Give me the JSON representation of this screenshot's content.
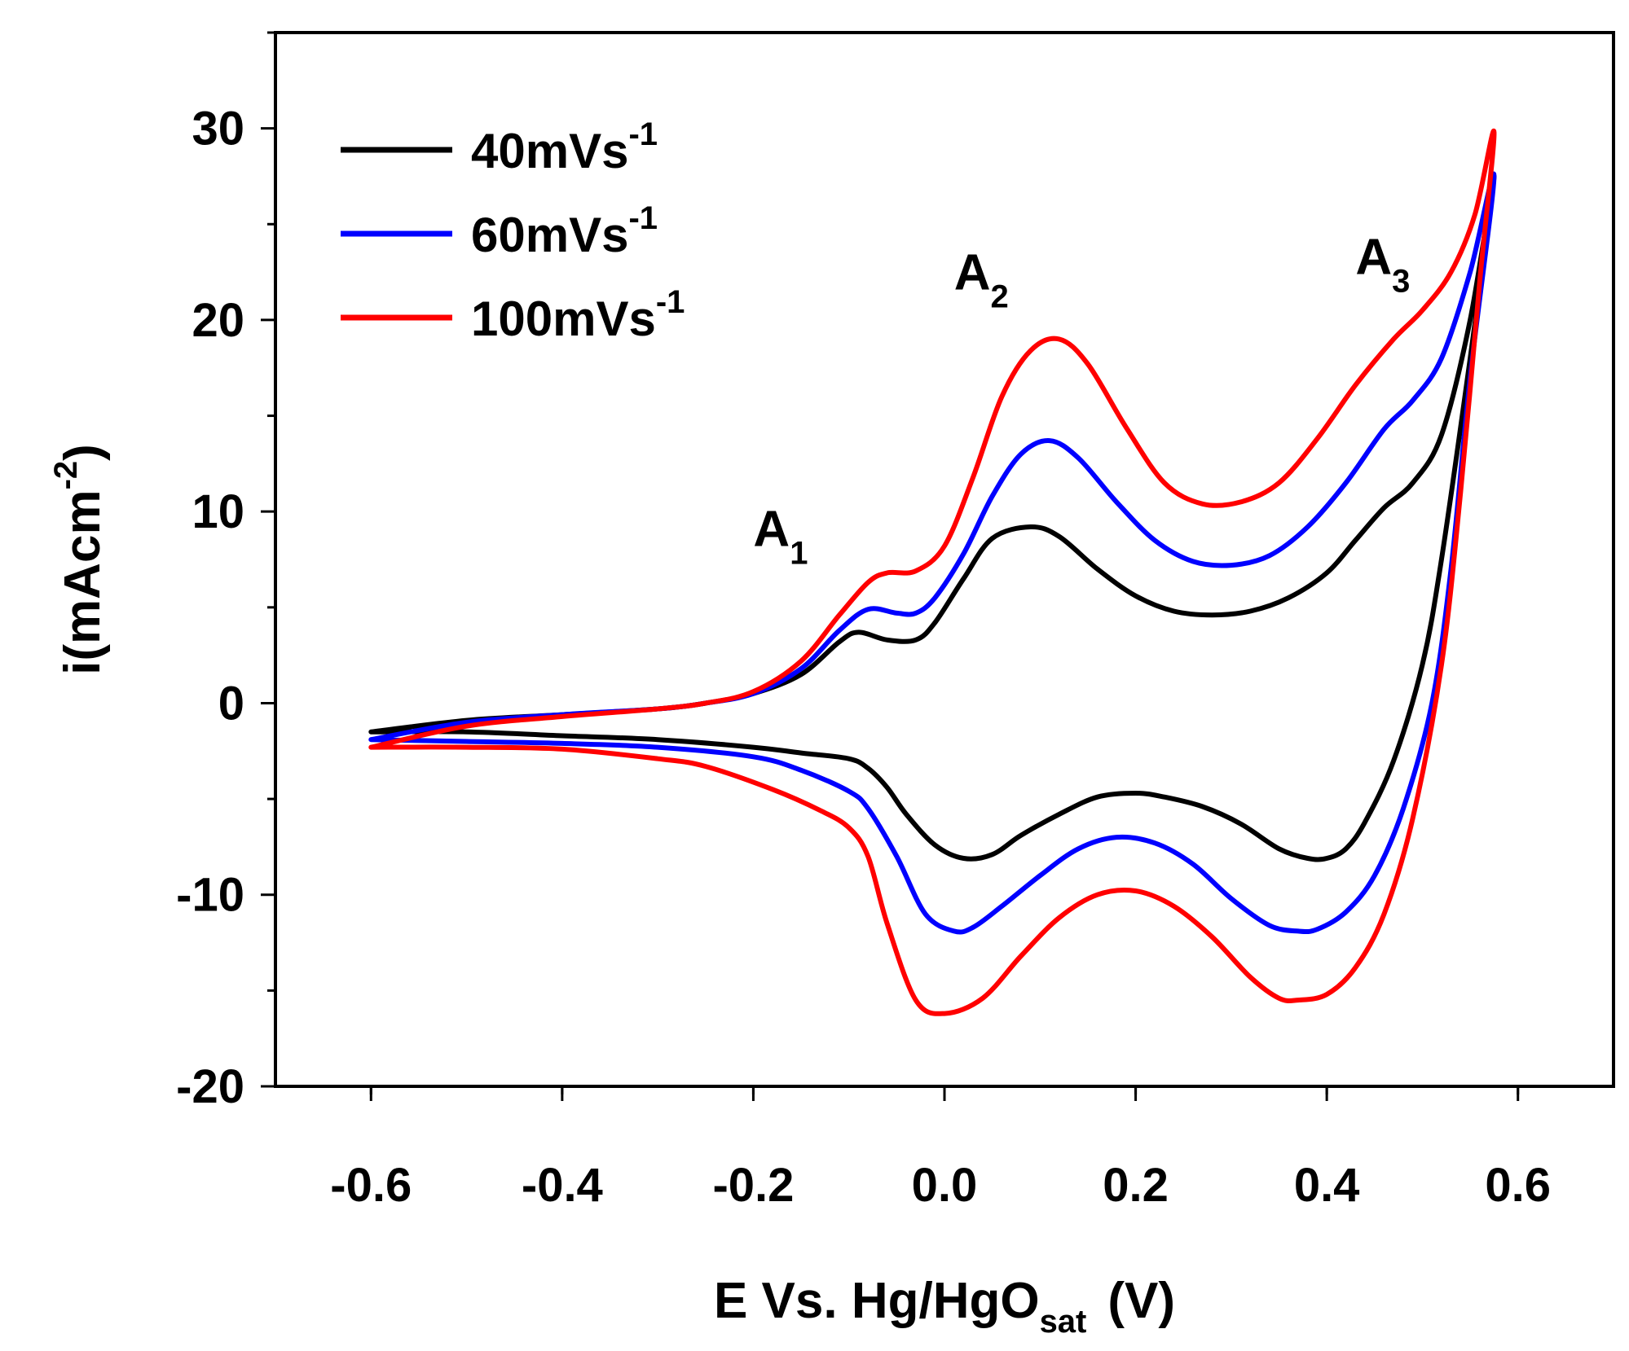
{
  "chart_data": {
    "type": "line",
    "title": "",
    "xlabel": "E Vs. Hg/HgO",
    "xlabel_subscript": "sat",
    "xlabel_unit": "(V)",
    "ylabel": "i(mAcm",
    "ylabel_superscript": "-2",
    "ylabel_close": ")",
    "xlim": [
      -0.7,
      0.7
    ],
    "ylim": [
      -20,
      35
    ],
    "x_ticks": [
      -0.6,
      -0.4,
      -0.2,
      0.0,
      0.2,
      0.4,
      0.6
    ],
    "x_tick_labels": [
      "-0.6",
      "-0.4",
      "-0.2",
      "0.0",
      "0.2",
      "0.4",
      "0.6"
    ],
    "y_ticks": [
      -20,
      -10,
      0,
      10,
      20,
      30
    ],
    "y_tick_labels": [
      "-20",
      "-10",
      "0",
      "10",
      "20",
      "30"
    ],
    "grid": false,
    "legend_position": "top-left",
    "series": [
      {
        "name": "40mVs-1",
        "label_main": "40mVs",
        "label_sup": "-1",
        "color": "#000000",
        "anodic_x": [
          -0.6,
          -0.5,
          -0.4,
          -0.3,
          -0.25,
          -0.2,
          -0.15,
          -0.11,
          -0.09,
          -0.06,
          -0.03,
          -0.01,
          0.02,
          0.05,
          0.09,
          0.12,
          0.16,
          0.2,
          0.24,
          0.28,
          0.32,
          0.36,
          0.4,
          0.43,
          0.46,
          0.49,
          0.52,
          0.55,
          0.575
        ],
        "anodic_y": [
          -1.5,
          -0.9,
          -0.6,
          -0.3,
          0.0,
          0.5,
          1.5,
          3.2,
          3.7,
          3.3,
          3.3,
          4.2,
          6.5,
          8.6,
          9.2,
          8.7,
          7.0,
          5.6,
          4.8,
          4.6,
          4.8,
          5.5,
          6.8,
          8.5,
          10.2,
          11.5,
          14.0,
          20.0,
          27.5
        ],
        "cathodic_x": [
          0.575,
          0.55,
          0.52,
          0.5,
          0.47,
          0.44,
          0.42,
          0.4,
          0.38,
          0.35,
          0.31,
          0.27,
          0.23,
          0.2,
          0.16,
          0.12,
          0.08,
          0.05,
          0.02,
          -0.01,
          -0.04,
          -0.06,
          -0.08,
          -0.1,
          -0.15,
          -0.2,
          -0.3,
          -0.4,
          -0.5,
          -0.6
        ],
        "cathodic_y": [
          27.5,
          18.0,
          7.5,
          2.0,
          -3.0,
          -6.2,
          -7.6,
          -8.1,
          -8.1,
          -7.6,
          -6.3,
          -5.4,
          -4.9,
          -4.7,
          -4.9,
          -5.8,
          -6.9,
          -7.9,
          -8.1,
          -7.4,
          -5.8,
          -4.4,
          -3.4,
          -2.9,
          -2.6,
          -2.3,
          -1.9,
          -1.7,
          -1.5,
          -1.5
        ]
      },
      {
        "name": "60mVs-1",
        "label_main": "60mVs",
        "label_sup": "-1",
        "color": "#0000ff",
        "anodic_x": [
          -0.6,
          -0.5,
          -0.4,
          -0.3,
          -0.25,
          -0.2,
          -0.15,
          -0.11,
          -0.08,
          -0.05,
          -0.03,
          -0.01,
          0.02,
          0.05,
          0.08,
          0.11,
          0.14,
          0.18,
          0.22,
          0.26,
          0.3,
          0.34,
          0.38,
          0.42,
          0.46,
          0.49,
          0.52,
          0.55,
          0.575
        ],
        "anodic_y": [
          -1.9,
          -1.0,
          -0.6,
          -0.3,
          0.0,
          0.5,
          1.8,
          3.8,
          4.9,
          4.7,
          4.7,
          5.5,
          7.8,
          10.8,
          13.0,
          13.7,
          12.8,
          10.5,
          8.5,
          7.4,
          7.2,
          7.7,
          9.2,
          11.5,
          14.3,
          15.8,
          18.0,
          22.5,
          27.5
        ],
        "cathodic_x": [
          0.575,
          0.55,
          0.53,
          0.51,
          0.48,
          0.45,
          0.42,
          0.39,
          0.37,
          0.34,
          0.3,
          0.26,
          0.22,
          0.18,
          0.14,
          0.1,
          0.06,
          0.03,
          0.01,
          -0.02,
          -0.05,
          -0.08,
          -0.1,
          -0.15,
          -0.2,
          -0.3,
          -0.4,
          -0.5,
          -0.6
        ],
        "cathodic_y": [
          27.5,
          17.0,
          7.0,
          0.0,
          -5.5,
          -9.0,
          -10.9,
          -11.8,
          -11.9,
          -11.6,
          -10.2,
          -8.4,
          -7.3,
          -7.0,
          -7.6,
          -9.0,
          -10.6,
          -11.7,
          -11.9,
          -11.0,
          -8.0,
          -5.5,
          -4.6,
          -3.5,
          -2.8,
          -2.3,
          -2.1,
          -2.0,
          -1.9
        ]
      },
      {
        "name": "100mVs-1",
        "label_main": "100mVs",
        "label_sup": "-1",
        "color": "#ff0000",
        "anodic_x": [
          -0.6,
          -0.5,
          -0.4,
          -0.3,
          -0.25,
          -0.2,
          -0.15,
          -0.11,
          -0.08,
          -0.06,
          -0.03,
          0.0,
          0.03,
          0.06,
          0.09,
          0.12,
          0.15,
          0.19,
          0.23,
          0.27,
          0.31,
          0.35,
          0.39,
          0.43,
          0.47,
          0.5,
          0.53,
          0.555,
          0.575
        ],
        "anodic_y": [
          -2.3,
          -1.2,
          -0.7,
          -0.3,
          0.0,
          0.6,
          2.2,
          4.6,
          6.3,
          6.8,
          6.9,
          8.2,
          11.8,
          16.0,
          18.4,
          19.0,
          17.7,
          14.4,
          11.5,
          10.4,
          10.5,
          11.5,
          13.8,
          16.6,
          19.0,
          20.5,
          22.5,
          25.5,
          29.8
        ],
        "cathodic_x": [
          0.575,
          0.56,
          0.54,
          0.52,
          0.49,
          0.46,
          0.43,
          0.4,
          0.37,
          0.35,
          0.32,
          0.28,
          0.24,
          0.2,
          0.16,
          0.12,
          0.08,
          0.04,
          0.0,
          -0.03,
          -0.06,
          -0.08,
          -0.1,
          -0.13,
          -0.18,
          -0.25,
          -0.3,
          -0.4,
          -0.5,
          -0.6
        ],
        "cathodic_y": [
          29.8,
          22.0,
          11.0,
          2.0,
          -6.0,
          -11.0,
          -13.8,
          -15.2,
          -15.5,
          -15.4,
          -14.3,
          -12.2,
          -10.6,
          -9.8,
          -10.0,
          -11.2,
          -13.2,
          -15.4,
          -16.2,
          -15.5,
          -11.5,
          -8.0,
          -6.5,
          -5.6,
          -4.5,
          -3.3,
          -2.9,
          -2.4,
          -2.3,
          -2.3
        ]
      }
    ],
    "annotations": [
      {
        "name": "peak-label-a1",
        "main": "A",
        "sub": "1",
        "x": -0.2,
        "y": 8.2
      },
      {
        "name": "peak-label-a2",
        "main": "A",
        "sub": "2",
        "x": 0.01,
        "y": 21.6
      },
      {
        "name": "peak-label-a3",
        "main": "A",
        "sub": "3",
        "x": 0.43,
        "y": 22.4
      }
    ]
  }
}
